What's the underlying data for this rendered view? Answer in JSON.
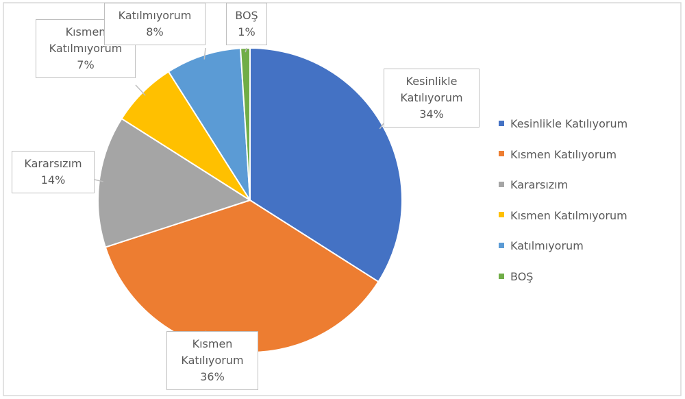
{
  "chart_data": {
    "type": "pie",
    "categories": [
      "Kesinlikle Katılıyorum",
      "Kısmen Katılıyorum",
      "Kararsızım",
      "Kısmen Katılmıyorum",
      "Katılmıyorum",
      "BOŞ"
    ],
    "values": [
      34,
      36,
      14,
      7,
      8,
      1
    ],
    "value_labels": [
      "34%",
      "36%",
      "14%",
      "7%",
      "8%",
      "1%"
    ],
    "colors": [
      "#4472c4",
      "#ed7d31",
      "#a5a5a5",
      "#ffc000",
      "#5b9bd5",
      "#70ad47"
    ],
    "legend": "right"
  }
}
